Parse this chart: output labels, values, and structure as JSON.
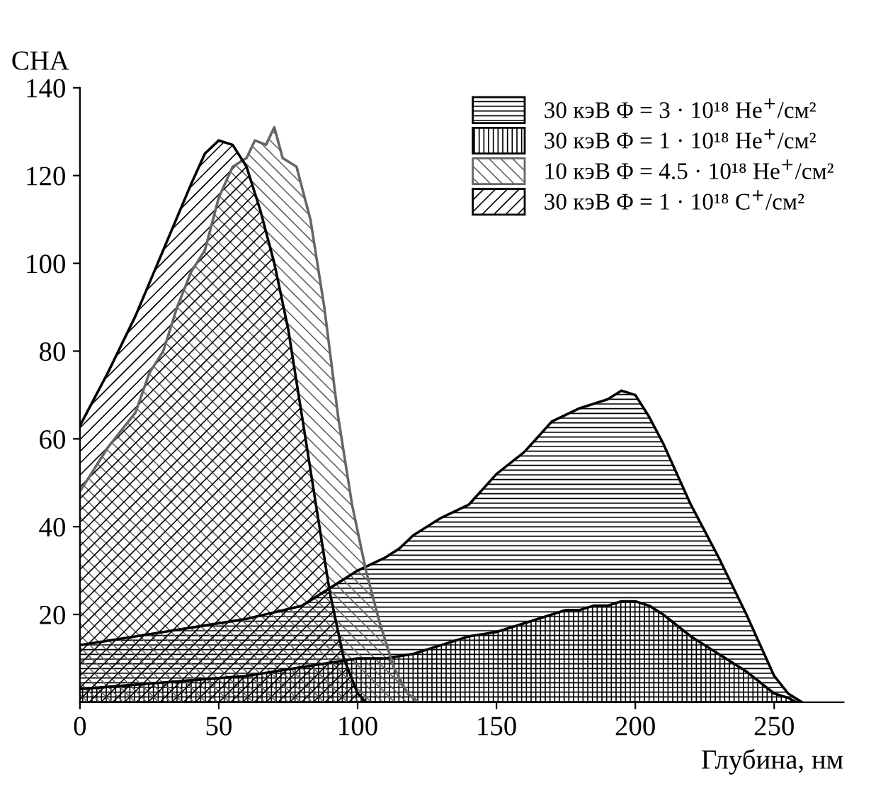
{
  "chart_data": {
    "type": "area",
    "xlabel": "Глубина, нм",
    "ylabel": "СНА",
    "xlim": [
      0,
      275
    ],
    "ylim": [
      0,
      140
    ],
    "xticks": [
      0,
      50,
      100,
      150,
      200,
      250
    ],
    "yticks": [
      20,
      40,
      60,
      80,
      100,
      120,
      140
    ],
    "grid": false,
    "legend": "top right",
    "series": [
      {
        "name": "30 кэВ Φ = 3 · 10¹⁸ He$^{+}$/см²",
        "color": "#000000",
        "x": [
          0,
          20,
          40,
          60,
          80,
          90,
          100,
          110,
          115,
          120,
          130,
          140,
          150,
          160,
          170,
          180,
          190,
          195,
          200,
          205,
          210,
          220,
          230,
          240,
          250,
          255,
          260
        ],
        "values": [
          13,
          15,
          17,
          19,
          22,
          26,
          30,
          33,
          35,
          38,
          42,
          45,
          52,
          57,
          64,
          67,
          69,
          71,
          70,
          65,
          59,
          45,
          33,
          20,
          6,
          2,
          0
        ]
      },
      {
        "name": "30 кэВ Φ = 1 · 10¹⁸ He$^{+}$/см²",
        "color": "#000000",
        "x": [
          0,
          20,
          40,
          60,
          80,
          100,
          110,
          120,
          130,
          140,
          150,
          160,
          170,
          175,
          180,
          185,
          190,
          195,
          200,
          205,
          210,
          220,
          230,
          240,
          250,
          255,
          258
        ],
        "values": [
          3,
          4,
          5,
          6,
          8,
          10,
          10,
          11,
          13,
          15,
          16,
          18,
          20,
          21,
          21,
          22,
          22,
          23,
          23,
          22,
          20,
          15,
          11,
          7,
          2,
          1,
          0
        ]
      },
      {
        "name": "10 кэВ Φ = 4.5 · 10¹⁸ He$^{+}$/см²",
        "color": "#666666",
        "x": [
          0,
          10,
          20,
          25,
          30,
          35,
          40,
          45,
          50,
          55,
          60,
          63,
          67,
          70,
          73,
          78,
          83,
          88,
          93,
          98,
          103,
          108,
          113,
          118,
          122
        ],
        "values": [
          48,
          58,
          66,
          75,
          80,
          90,
          98,
          103,
          115,
          122,
          124,
          128,
          127,
          131,
          124,
          122,
          110,
          90,
          65,
          45,
          30,
          18,
          8,
          2,
          0
        ]
      },
      {
        "name": "30 кэВ Φ = 1 · 10¹⁸ C$^{+}$/см²",
        "color": "#000000",
        "x": [
          0,
          10,
          20,
          30,
          40,
          45,
          50,
          55,
          60,
          65,
          70,
          75,
          80,
          85,
          90,
          95,
          100,
          103
        ],
        "values": [
          63,
          75,
          88,
          103,
          118,
          125,
          128,
          127,
          122,
          112,
          100,
          85,
          65,
          45,
          25,
          10,
          2,
          0
        ]
      }
    ]
  }
}
